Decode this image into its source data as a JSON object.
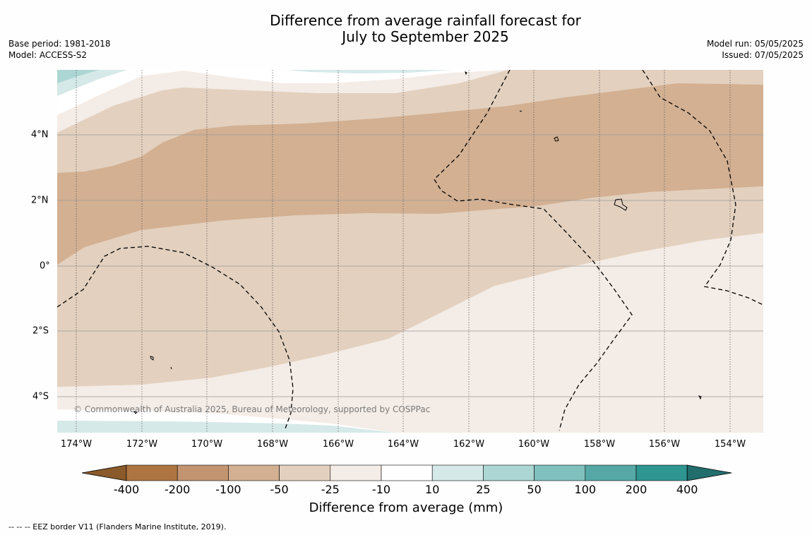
{
  "title_line1": "Difference from average rainfall forecast for",
  "title_line2": "July to September 2025",
  "meta_left": {
    "base_period": "Base period: 1981-2018",
    "model": "Model: ACCESS-S2"
  },
  "meta_right": {
    "model_run": "Model run: 05/05/2025",
    "issued": "Issued: 07/05/2025"
  },
  "copyright": "© Commonwealth of Australia 2025, Bureau of Meteorology, supported by COSPPac",
  "lat_labels": [
    "4°N",
    "2°N",
    "0°",
    "2°S",
    "4°S"
  ],
  "lon_labels": [
    "174°W",
    "172°W",
    "170°W",
    "168°W",
    "166°W",
    "164°W",
    "162°W",
    "160°W",
    "158°W",
    "156°W",
    "154°W"
  ],
  "colorbar": {
    "title": "Difference from average (mm)",
    "ticks": [
      "-400",
      "-200",
      "-100",
      "-50",
      "-25",
      "-10",
      "10",
      "25",
      "50",
      "100",
      "200",
      "400"
    ],
    "colors": [
      "#8b5a2b",
      "#ad7542",
      "#c29470",
      "#d3b092",
      "#e3d0be",
      "#f4ece6",
      "#ffffff",
      "#d5e9e8",
      "#acd6d4",
      "#80c1be",
      "#55a8a5",
      "#2e9590",
      "#216e6c"
    ]
  },
  "footer": "-- -- -- EEZ border V11 (Flanders Marine Institute, 2019)."
}
